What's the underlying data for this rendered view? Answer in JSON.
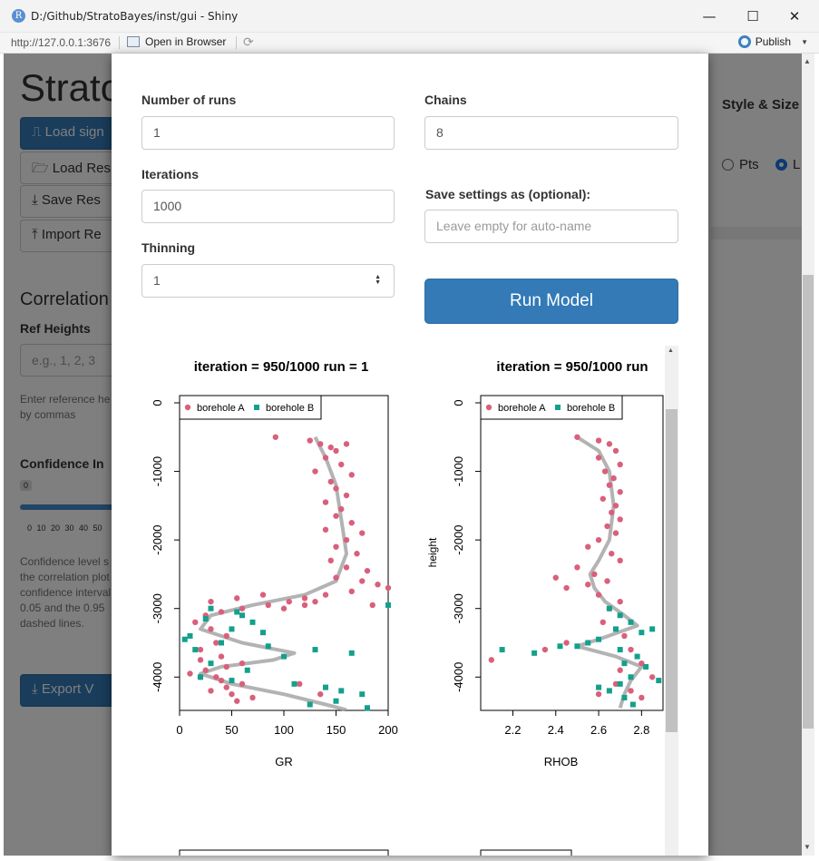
{
  "window": {
    "title": "D:/Github/StratoBayes/inst/gui - Shiny",
    "minimize": "—",
    "maximize": "☐",
    "close": "✕"
  },
  "address_bar": {
    "url": "http://127.0.0.1:3676",
    "open_in_browser": "Open in Browser",
    "publish": "Publish"
  },
  "background_app": {
    "title": "Strato",
    "buttons": [
      "Load sign",
      "Load Res",
      "Save Res",
      "Import Re"
    ],
    "correlation_heading": "Correlation",
    "ref_heights_label": "Ref Heights",
    "ref_heights_placeholder": "e.g., 1, 2, 3",
    "ref_heights_help": "Enter reference he by commas",
    "confidence_label": "Confidence In",
    "confidence_badge": "0",
    "slider_ticks": "0 10 20 30 40 50",
    "confidence_help": "Confidence level s the correlation plot confidence interval 0.05 and the 0.95 dashed lines.",
    "export_button": "Export V",
    "style_size": "Style & Size",
    "radio_pts": "Pts",
    "radio_l": "L"
  },
  "modal": {
    "number_of_runs": {
      "label": "Number of runs",
      "value": "1"
    },
    "iterations": {
      "label": "Iterations",
      "value": "1000"
    },
    "thinning": {
      "label": "Thinning",
      "value": "1"
    },
    "chains": {
      "label": "Chains",
      "value": "8"
    },
    "save_settings": {
      "label": "Save settings as (optional):",
      "placeholder": "Leave empty for auto-name"
    },
    "run_button": "Run Model"
  },
  "chart_data": [
    {
      "type": "scatter",
      "title": "iteration = 950/1000   run = 1",
      "xlabel": "GR",
      "ylabel": "",
      "xlim": [
        0,
        200
      ],
      "ylim": [
        -4500,
        0
      ],
      "x_ticks": [
        "0",
        "50",
        "100",
        "150",
        "200"
      ],
      "y_ticks": [
        "0",
        "-1000",
        "-2000",
        "-3000",
        "-4000"
      ],
      "legend": {
        "placement": "top-left",
        "entries": [
          "borehole A",
          "borehole B"
        ]
      },
      "colors": {
        "borehole A": "#d9607c",
        "borehole B": "#13a08c",
        "trend": "#9a9a9a"
      },
      "series": [
        {
          "name": "borehole A",
          "marker": "circle",
          "points": [
            [
              92,
              -500
            ],
            [
              125,
              -550
            ],
            [
              135,
              -600
            ],
            [
              145,
              -650
            ],
            [
              150,
              -700
            ],
            [
              160,
              -600
            ],
            [
              140,
              -800
            ],
            [
              155,
              -900
            ],
            [
              130,
              -1000
            ],
            [
              165,
              -1050
            ],
            [
              145,
              -1150
            ],
            [
              150,
              -1250
            ],
            [
              160,
              -1350
            ],
            [
              140,
              -1450
            ],
            [
              155,
              -1550
            ],
            [
              150,
              -1650
            ],
            [
              165,
              -1750
            ],
            [
              140,
              -1850
            ],
            [
              175,
              -1900
            ],
            [
              160,
              -2000
            ],
            [
              150,
              -2100
            ],
            [
              170,
              -2200
            ],
            [
              145,
              -2300
            ],
            [
              160,
              -2400
            ],
            [
              180,
              -2450
            ],
            [
              150,
              -2550
            ],
            [
              175,
              -2600
            ],
            [
              190,
              -2650
            ],
            [
              200,
              -2700
            ],
            [
              165,
              -2750
            ],
            [
              140,
              -2800
            ],
            [
              120,
              -2850
            ],
            [
              105,
              -2900
            ],
            [
              85,
              -2950
            ],
            [
              60,
              -3000
            ],
            [
              40,
              -3050
            ],
            [
              25,
              -3100
            ],
            [
              15,
              -3200
            ],
            [
              30,
              -3300
            ],
            [
              45,
              -3400
            ],
            [
              35,
              -3500
            ],
            [
              20,
              -3600
            ],
            [
              40,
              -3700
            ],
            [
              60,
              -3800
            ],
            [
              45,
              -3850
            ],
            [
              25,
              -3900
            ],
            [
              10,
              -3950
            ],
            [
              20,
              -4000
            ],
            [
              40,
              -4050
            ],
            [
              60,
              -4100
            ],
            [
              45,
              -4150
            ],
            [
              30,
              -4200
            ],
            [
              50,
              -4250
            ],
            [
              70,
              -4300
            ],
            [
              55,
              -4350
            ],
            [
              20,
              -3750
            ],
            [
              35,
              -4000
            ],
            [
              80,
              -2800
            ],
            [
              55,
              -2850
            ],
            [
              30,
              -2900
            ],
            [
              100,
              -3000
            ],
            [
              120,
              -2950
            ],
            [
              130,
              -2900
            ],
            [
              185,
              -2950
            ],
            [
              115,
              -4100
            ],
            [
              135,
              -4250
            ]
          ]
        },
        {
          "name": "borehole B",
          "marker": "square",
          "points": [
            [
              30,
              -3000
            ],
            [
              55,
              -3050
            ],
            [
              25,
              -3150
            ],
            [
              70,
              -3200
            ],
            [
              50,
              -3300
            ],
            [
              10,
              -3400
            ],
            [
              5,
              -3450
            ],
            [
              40,
              -3500
            ],
            [
              85,
              -3550
            ],
            [
              130,
              -3600
            ],
            [
              165,
              -3650
            ],
            [
              100,
              -3700
            ],
            [
              30,
              -3800
            ],
            [
              65,
              -3900
            ],
            [
              20,
              -4000
            ],
            [
              50,
              -4050
            ],
            [
              110,
              -4100
            ],
            [
              140,
              -4150
            ],
            [
              155,
              -4200
            ],
            [
              175,
              -4250
            ],
            [
              150,
              -4350
            ],
            [
              125,
              -4400
            ],
            [
              180,
              -4450
            ],
            [
              200,
              -2950
            ],
            [
              60,
              -3100
            ],
            [
              80,
              -3350
            ],
            [
              15,
              -3600
            ]
          ]
        }
      ],
      "trend_line": [
        [
          130,
          -500
        ],
        [
          140,
          -800
        ],
        [
          150,
          -1200
        ],
        [
          155,
          -1700
        ],
        [
          160,
          -2200
        ],
        [
          150,
          -2600
        ],
        [
          120,
          -2800
        ],
        [
          70,
          -2950
        ],
        [
          30,
          -3100
        ],
        [
          20,
          -3300
        ],
        [
          60,
          -3500
        ],
        [
          110,
          -3650
        ],
        [
          90,
          -3750
        ],
        [
          40,
          -3850
        ],
        [
          20,
          -3950
        ],
        [
          50,
          -4100
        ],
        [
          100,
          -4250
        ],
        [
          140,
          -4400
        ],
        [
          160,
          -4480
        ]
      ]
    },
    {
      "type": "scatter",
      "title": "iteration = 950/1000   run",
      "xlabel": "RHOB",
      "ylabel": "height",
      "xlim": [
        2.05,
        2.9
      ],
      "ylim": [
        -4500,
        0
      ],
      "x_ticks": [
        "2.2",
        "2.4",
        "2.6",
        "2.8"
      ],
      "y_ticks": [
        "0",
        "-1000",
        "-2000",
        "-3000",
        "-4000"
      ],
      "legend": {
        "placement": "top-left",
        "entries": [
          "borehole A",
          "borehole B"
        ]
      },
      "colors": {
        "borehole A": "#d9607c",
        "borehole B": "#13a08c",
        "trend": "#9a9a9a"
      },
      "series": [
        {
          "name": "borehole A",
          "marker": "circle",
          "points": [
            [
              2.5,
              -500
            ],
            [
              2.6,
              -550
            ],
            [
              2.65,
              -600
            ],
            [
              2.68,
              -700
            ],
            [
              2.6,
              -800
            ],
            [
              2.7,
              -900
            ],
            [
              2.63,
              -1000
            ],
            [
              2.67,
              -1100
            ],
            [
              2.65,
              -1200
            ],
            [
              2.7,
              -1300
            ],
            [
              2.62,
              -1400
            ],
            [
              2.68,
              -1500
            ],
            [
              2.66,
              -1600
            ],
            [
              2.7,
              -1700
            ],
            [
              2.64,
              -1800
            ],
            [
              2.68,
              -1900
            ],
            [
              2.6,
              -2000
            ],
            [
              2.55,
              -2100
            ],
            [
              2.66,
              -2200
            ],
            [
              2.7,
              -2300
            ],
            [
              2.5,
              -2400
            ],
            [
              2.58,
              -2500
            ],
            [
              2.64,
              -2600
            ],
            [
              2.45,
              -2700
            ],
            [
              2.6,
              -2800
            ],
            [
              2.7,
              -2900
            ],
            [
              2.65,
              -3000
            ],
            [
              2.55,
              -2650
            ],
            [
              2.4,
              -2550
            ],
            [
              2.62,
              -3200
            ],
            [
              2.72,
              -3400
            ],
            [
              2.75,
              -3600
            ],
            [
              2.8,
              -3800
            ],
            [
              2.7,
              -3900
            ],
            [
              2.85,
              -4000
            ],
            [
              2.9,
              -4100
            ],
            [
              2.75,
              -4200
            ],
            [
              2.8,
              -4300
            ],
            [
              2.1,
              -3750
            ],
            [
              2.35,
              -3600
            ],
            [
              2.68,
              -4100
            ],
            [
              2.6,
              -4250
            ],
            [
              2.45,
              -3500
            ]
          ]
        },
        {
          "name": "borehole B",
          "marker": "square",
          "points": [
            [
              2.65,
              -3000
            ],
            [
              2.7,
              -3100
            ],
            [
              2.75,
              -3200
            ],
            [
              2.68,
              -3300
            ],
            [
              2.8,
              -3350
            ],
            [
              2.85,
              -3300
            ],
            [
              2.6,
              -3450
            ],
            [
              2.55,
              -3500
            ],
            [
              2.5,
              -3550
            ],
            [
              2.7,
              -3600
            ],
            [
              2.78,
              -3700
            ],
            [
              2.72,
              -3800
            ],
            [
              2.82,
              -3850
            ],
            [
              2.9,
              -3900
            ],
            [
              2.75,
              -4000
            ],
            [
              2.7,
              -4100
            ],
            [
              2.65,
              -4200
            ],
            [
              2.72,
              -4300
            ],
            [
              2.76,
              -4400
            ],
            [
              2.15,
              -3600
            ],
            [
              2.3,
              -3650
            ],
            [
              2.42,
              -3550
            ],
            [
              2.88,
              -4050
            ],
            [
              2.6,
              -4150
            ]
          ]
        }
      ],
      "trend_line": [
        [
          2.5,
          -500
        ],
        [
          2.6,
          -700
        ],
        [
          2.65,
          -1000
        ],
        [
          2.67,
          -1500
        ],
        [
          2.65,
          -2000
        ],
        [
          2.6,
          -2300
        ],
        [
          2.56,
          -2500
        ],
        [
          2.58,
          -2700
        ],
        [
          2.63,
          -2900
        ],
        [
          2.72,
          -3100
        ],
        [
          2.78,
          -3250
        ],
        [
          2.6,
          -3450
        ],
        [
          2.5,
          -3550
        ],
        [
          2.68,
          -3700
        ],
        [
          2.8,
          -3850
        ],
        [
          2.75,
          -4050
        ],
        [
          2.72,
          -4250
        ],
        [
          2.7,
          -4450
        ]
      ]
    }
  ]
}
